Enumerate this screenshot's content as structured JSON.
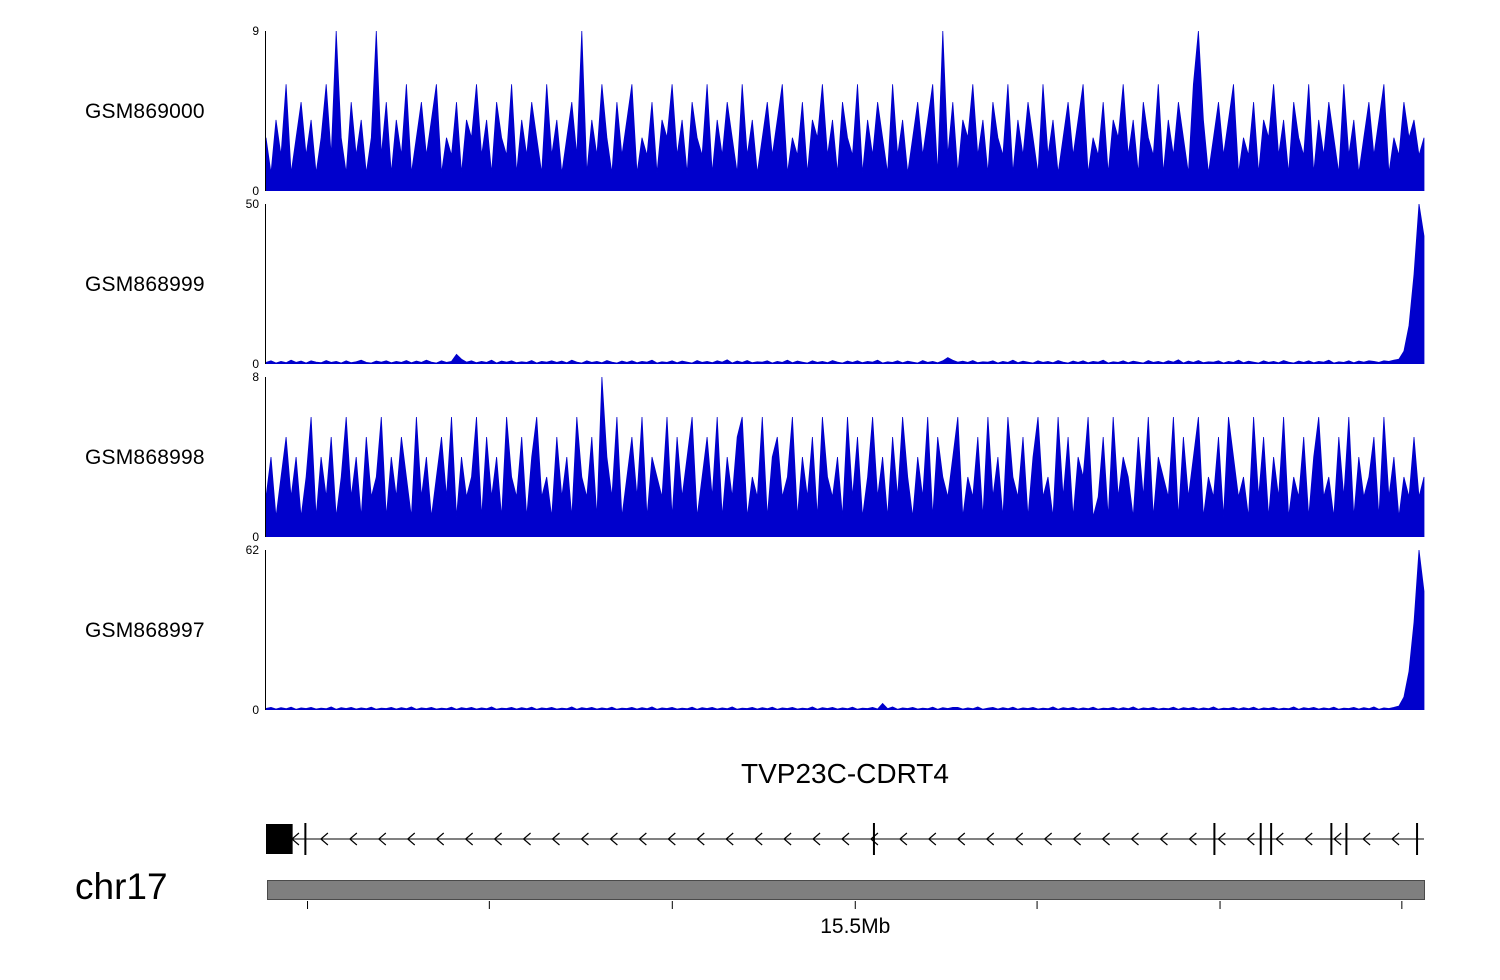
{
  "chart_data": {
    "type": "area",
    "description": "Genome browser coverage tracks over chr17 near 15.5Mb with gene model TVP23C-CDRT4",
    "colors": {
      "signal": "#0000cc",
      "ideogram": "#7f7f7f"
    },
    "region": {
      "chromosome": "chr17",
      "axis_label": "15.5Mb"
    },
    "tracks": [
      {
        "label": "GSM869000",
        "ymin": 0,
        "ymax": 9,
        "values": [
          3,
          1,
          4,
          2,
          6,
          1,
          3,
          5,
          2,
          4,
          1,
          3,
          6,
          2,
          9,
          3,
          1,
          5,
          2,
          4,
          1,
          3,
          9,
          2,
          5,
          1,
          4,
          2,
          6,
          1,
          3,
          5,
          2,
          4,
          6,
          1,
          3,
          2,
          5,
          1,
          4,
          3,
          6,
          2,
          4,
          1,
          5,
          3,
          2,
          6,
          1,
          4,
          2,
          5,
          3,
          1,
          6,
          2,
          4,
          1,
          3,
          5,
          2,
          9,
          1,
          4,
          2,
          6,
          3,
          1,
          5,
          2,
          4,
          6,
          1,
          3,
          2,
          5,
          1,
          4,
          3,
          6,
          2,
          4,
          1,
          5,
          3,
          2,
          6,
          1,
          4,
          2,
          5,
          3,
          1,
          6,
          2,
          4,
          1,
          3,
          5,
          2,
          4,
          6,
          1,
          3,
          2,
          5,
          1,
          4,
          3,
          6,
          2,
          4,
          1,
          5,
          3,
          2,
          6,
          1,
          4,
          2,
          5,
          3,
          1,
          6,
          2,
          4,
          1,
          3,
          5,
          2,
          4,
          6,
          1,
          9,
          2,
          5,
          1,
          4,
          3,
          6,
          2,
          4,
          1,
          5,
          3,
          2,
          6,
          1,
          4,
          2,
          5,
          3,
          1,
          6,
          2,
          4,
          1,
          3,
          5,
          2,
          4,
          6,
          1,
          3,
          2,
          5,
          1,
          4,
          3,
          6,
          2,
          4,
          1,
          5,
          3,
          2,
          6,
          1,
          4,
          2,
          5,
          3,
          1,
          6,
          9,
          4,
          1,
          3,
          5,
          2,
          4,
          6,
          1,
          3,
          2,
          5,
          1,
          4,
          3,
          6,
          2,
          4,
          1,
          5,
          3,
          2,
          6,
          1,
          4,
          2,
          5,
          3,
          1,
          6,
          2,
          4,
          1,
          3,
          5,
          2,
          4,
          6,
          1,
          3,
          2,
          5,
          3,
          4,
          2,
          3
        ]
      },
      {
        "label": "GSM868999",
        "ymin": 0,
        "ymax": 50,
        "values": [
          0.5,
          1,
          0.3,
          0.8,
          0.4,
          1.2,
          0.5,
          0.9,
          0.3,
          1,
          0.6,
          0.4,
          1.1,
          0.5,
          0.8,
          0.3,
          1,
          0.4,
          0.7,
          1.2,
          0.5,
          0.3,
          0.9,
          0.6,
          1,
          0.4,
          0.8,
          0.5,
          1.1,
          0.4,
          0.9,
          0.5,
          1.2,
          0.6,
          0.3,
          1,
          0.5,
          0.8,
          3,
          1.5,
          0.6,
          1,
          0.4,
          0.8,
          0.5,
          1.2,
          0.3,
          0.9,
          0.6,
          1,
          0.4,
          0.7,
          0.5,
          1.1,
          0.3,
          0.8,
          0.6,
          1,
          0.5,
          0.9,
          0.4,
          1.2,
          0.6,
          0.3,
          1,
          0.5,
          0.8,
          0.4,
          1.1,
          0.6,
          0.3,
          0.9,
          0.5,
          1,
          0.4,
          0.8,
          0.6,
          1.2,
          0.3,
          0.7,
          0.5,
          1,
          0.4,
          0.9,
          0.6,
          0.3,
          1.1,
          0.5,
          0.8,
          0.4,
          1,
          0.6,
          1.3,
          0.3,
          0.9,
          0.5,
          1.1,
          0.4,
          0.7,
          0.6,
          1,
          0.3,
          0.8,
          0.5,
          1.2,
          0.4,
          0.9,
          0.6,
          0.3,
          1,
          0.5,
          0.8,
          0.4,
          1.1,
          0.6,
          0.3,
          0.9,
          0.5,
          1,
          0.4,
          0.8,
          0.6,
          1.2,
          0.3,
          0.7,
          0.5,
          1,
          0.4,
          0.9,
          0.6,
          0.3,
          1.1,
          0.5,
          0.8,
          0.4,
          1,
          2,
          1.2,
          0.6,
          0.9,
          0.5,
          1.1,
          0.4,
          0.7,
          0.6,
          1,
          0.3,
          0.8,
          0.5,
          1.2,
          0.4,
          0.9,
          0.6,
          0.3,
          1,
          0.5,
          0.8,
          0.4,
          1.1,
          0.6,
          0.3,
          0.9,
          0.5,
          1,
          0.4,
          0.8,
          0.6,
          1.2,
          0.3,
          0.7,
          0.5,
          1,
          0.4,
          0.9,
          0.6,
          0.3,
          1.1,
          0.5,
          0.8,
          0.4,
          1,
          0.6,
          1.3,
          0.3,
          0.9,
          0.5,
          1.1,
          0.4,
          0.7,
          0.6,
          1,
          0.3,
          0.8,
          0.5,
          1.2,
          0.4,
          0.9,
          0.6,
          0.3,
          1,
          0.5,
          0.8,
          0.4,
          1.1,
          0.6,
          0.3,
          0.9,
          0.5,
          1,
          0.4,
          0.8,
          0.6,
          1.2,
          0.3,
          0.7,
          0.5,
          1,
          0.4,
          0.9,
          0.6,
          1,
          0.8,
          0.5,
          1,
          0.8,
          1.2,
          1.5,
          4,
          12,
          28,
          50,
          40
        ]
      },
      {
        "label": "GSM868998",
        "ymin": 0,
        "ymax": 8,
        "values": [
          2,
          4,
          1,
          3,
          5,
          2,
          4,
          1,
          3,
          6,
          1,
          4,
          2,
          5,
          1,
          3,
          6,
          2,
          4,
          1,
          5,
          2,
          3,
          6,
          1,
          4,
          2,
          5,
          3,
          1,
          6,
          2,
          4,
          1,
          3,
          5,
          2,
          6,
          1,
          4,
          2,
          3,
          6,
          1,
          5,
          2,
          4,
          1,
          6,
          3,
          2,
          5,
          1,
          4,
          6,
          2,
          3,
          1,
          5,
          2,
          4,
          1,
          6,
          3,
          2,
          5,
          1,
          8,
          4,
          2,
          6,
          1,
          3,
          5,
          2,
          6,
          1,
          4,
          3,
          2,
          6,
          1,
          5,
          2,
          4,
          6,
          1,
          3,
          5,
          2,
          6,
          1,
          4,
          2,
          5,
          6,
          1,
          3,
          2,
          6,
          1,
          4,
          5,
          2,
          3,
          6,
          1,
          4,
          2,
          5,
          1,
          6,
          3,
          2,
          4,
          1,
          6,
          2,
          5,
          1,
          3,
          6,
          2,
          4,
          1,
          5,
          2,
          6,
          3,
          1,
          4,
          2,
          6,
          1,
          5,
          3,
          2,
          4,
          6,
          1,
          3,
          2,
          5,
          1,
          6,
          2,
          4,
          1,
          6,
          3,
          2,
          5,
          1,
          4,
          6,
          2,
          3,
          1,
          6,
          2,
          5,
          1,
          4,
          3,
          6,
          1,
          2,
          5,
          1,
          6,
          2,
          4,
          3,
          1,
          5,
          2,
          6,
          1,
          4,
          3,
          2,
          6,
          1,
          5,
          2,
          4,
          6,
          1,
          3,
          2,
          5,
          1,
          6,
          4,
          2,
          3,
          1,
          6,
          2,
          5,
          1,
          4,
          2,
          6,
          1,
          3,
          2,
          5,
          1,
          4,
          6,
          2,
          3,
          1,
          5,
          2,
          6,
          1,
          4,
          2,
          3,
          5,
          1,
          6,
          2,
          4,
          1,
          3,
          2,
          5,
          2,
          3
        ]
      },
      {
        "label": "GSM868997",
        "ymin": 0,
        "ymax": 62,
        "values": [
          0.6,
          1,
          0.4,
          0.9,
          0.5,
          1.1,
          0.3,
          0.8,
          0.6,
          1,
          0.4,
          0.7,
          0.5,
          1.2,
          0.3,
          0.9,
          0.6,
          1,
          0.4,
          0.8,
          0.5,
          1.1,
          0.3,
          0.7,
          0.6,
          1,
          0.4,
          0.9,
          0.5,
          1.2,
          0.3,
          0.8,
          0.6,
          1,
          0.4,
          0.7,
          0.5,
          1.1,
          0.3,
          0.9,
          0.6,
          1,
          0.4,
          0.8,
          0.5,
          1.2,
          0.3,
          0.7,
          0.6,
          1,
          0.4,
          0.9,
          0.5,
          1.1,
          0.3,
          0.8,
          0.6,
          1,
          0.4,
          0.7,
          0.5,
          1.2,
          0.3,
          0.9,
          0.6,
          1,
          0.4,
          0.8,
          0.5,
          1.1,
          0.3,
          0.7,
          0.6,
          1,
          0.4,
          0.9,
          0.5,
          1.2,
          0.3,
          0.8,
          0.6,
          1,
          0.4,
          0.7,
          0.5,
          1.1,
          0.3,
          0.9,
          0.6,
          1,
          0.4,
          0.8,
          0.5,
          1.2,
          0.3,
          0.7,
          0.6,
          1,
          0.4,
          0.9,
          0.5,
          1.1,
          0.3,
          0.8,
          0.6,
          1,
          0.4,
          0.7,
          0.5,
          1.2,
          0.3,
          0.9,
          0.6,
          1,
          0.4,
          0.8,
          0.5,
          1.1,
          0.3,
          0.7,
          0.6,
          1,
          0.4,
          2.5,
          0.5,
          1.2,
          0.3,
          0.8,
          0.6,
          1,
          0.4,
          0.7,
          0.5,
          1.1,
          0.3,
          0.9,
          0.6,
          1,
          1,
          0.4,
          0.8,
          0.5,
          1.2,
          0.3,
          0.7,
          1,
          0.4,
          0.9,
          0.5,
          1.1,
          0.3,
          0.8,
          0.6,
          1,
          0.4,
          0.7,
          0.5,
          1.2,
          0.3,
          0.9,
          0.6,
          1,
          0.4,
          0.8,
          0.5,
          1.1,
          0.3,
          0.7,
          0.6,
          1,
          0.4,
          0.9,
          0.5,
          1.2,
          0.3,
          0.8,
          0.6,
          1,
          0.4,
          0.7,
          0.5,
          1.1,
          0.3,
          0.9,
          0.6,
          1,
          0.4,
          0.8,
          0.5,
          1.2,
          0.3,
          0.7,
          0.6,
          1,
          0.4,
          0.9,
          0.5,
          1.1,
          0.3,
          0.8,
          0.6,
          1,
          0.4,
          0.7,
          0.5,
          1.2,
          0.3,
          0.9,
          0.6,
          1,
          0.4,
          0.8,
          0.5,
          1.1,
          0.3,
          0.7,
          0.6,
          1,
          0.4,
          0.9,
          0.5,
          1.2,
          0.3,
          0.8,
          0.6,
          1,
          1.5,
          5,
          15,
          34,
          62,
          46
        ]
      }
    ],
    "gene": {
      "name": "TVP23C-CDRT4",
      "strand": "-",
      "first_exon_box": {
        "start": 0.0,
        "end": 0.023
      },
      "exon_marks": [
        0.034,
        0.525,
        0.819,
        0.859,
        0.868,
        0.92,
        0.933,
        0.994
      ]
    },
    "axis": {
      "label": "15.5Mb",
      "labeled_tick_index": 3,
      "ticks": [
        {
          "position": 0.035,
          "label": ""
        },
        {
          "position": 0.192,
          "label": ""
        },
        {
          "position": 0.35,
          "label": ""
        },
        {
          "position": 0.508,
          "label": "15.5Mb"
        },
        {
          "position": 0.665,
          "label": ""
        },
        {
          "position": 0.823,
          "label": ""
        },
        {
          "position": 0.98,
          "label": ""
        }
      ]
    }
  }
}
